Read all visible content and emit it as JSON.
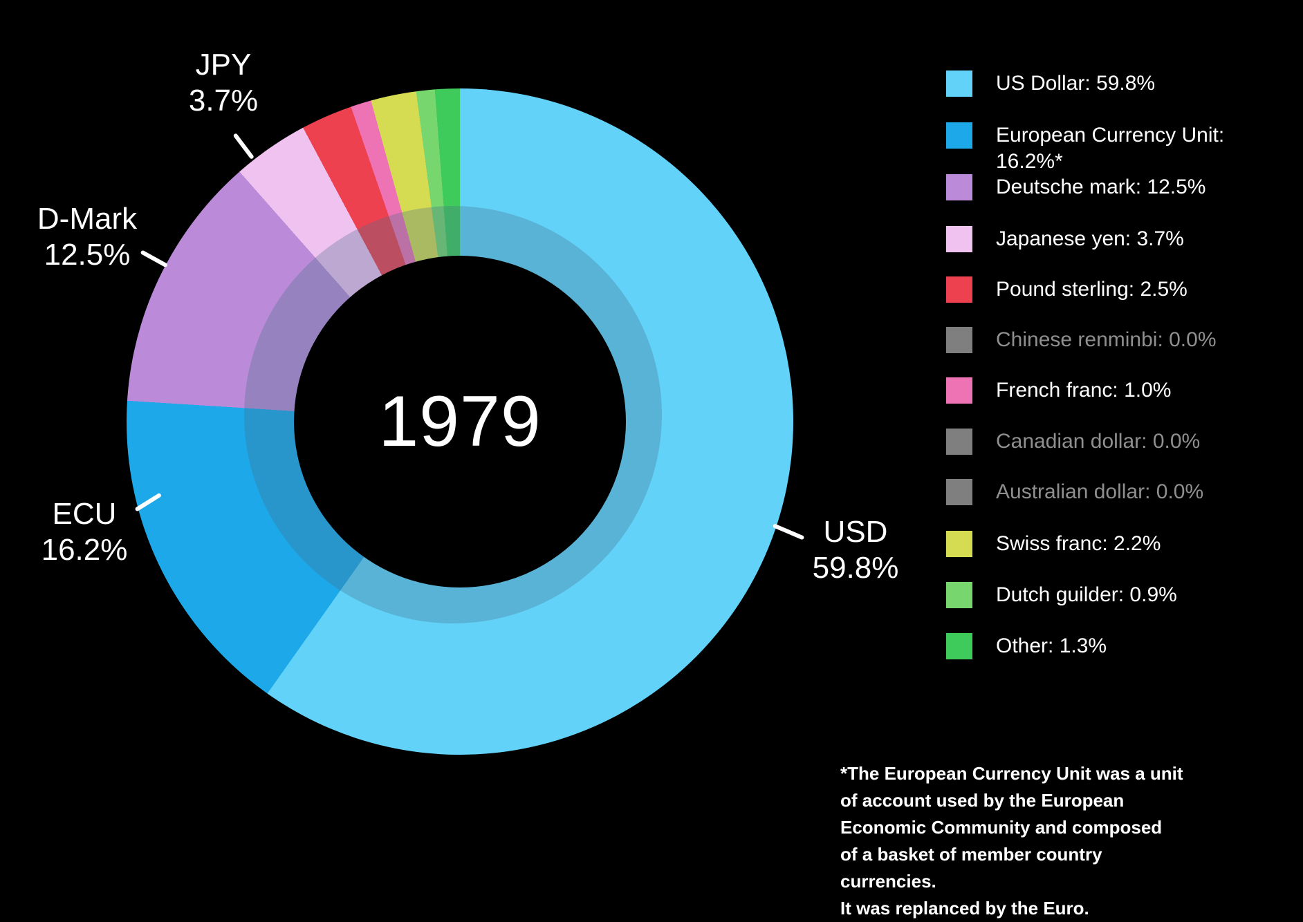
{
  "chart_data": {
    "type": "pie",
    "variant": "donut",
    "title": "",
    "center_label": "1979",
    "background": "#000000",
    "legend_position": "right",
    "start_angle_deg": 0,
    "series": [
      {
        "label": "US Dollar",
        "value": 59.8,
        "color": "#62D2F8",
        "legend_text": "US Dollar: 59.8%"
      },
      {
        "label": "European Currency Unit",
        "value": 16.2,
        "color": "#1CA8E9",
        "legend_text": "European Currency Unit: 16.2%*"
      },
      {
        "label": "Deutsche mark",
        "value": 12.5,
        "color": "#BB8BD9",
        "legend_text": "Deutsche mark: 12.5%"
      },
      {
        "label": "Japanese yen",
        "value": 3.7,
        "color": "#EFC2EF",
        "legend_text": "Japanese yen: 3.7%"
      },
      {
        "label": "Pound sterling",
        "value": 2.5,
        "color": "#EE4150",
        "legend_text": "Pound sterling: 2.5%"
      },
      {
        "label": "Chinese renminbi",
        "value": 0.0,
        "color": "#7F7F7F",
        "legend_text": "Chinese renminbi: 0.0%",
        "muted": true
      },
      {
        "label": "French franc",
        "value": 1.0,
        "color": "#EE73B4",
        "legend_text": "French franc: 1.0%"
      },
      {
        "label": "Canadian dollar",
        "value": 0.0,
        "color": "#7F7F7F",
        "legend_text": "Canadian dollar: 0.0%",
        "muted": true
      },
      {
        "label": "Australian dollar",
        "value": 0.0,
        "color": "#7F7F7F",
        "legend_text": "Australian dollar: 0.0%",
        "muted": true
      },
      {
        "label": "Swiss franc",
        "value": 2.2,
        "color": "#D5DC52",
        "legend_text": "Swiss franc: 2.2%"
      },
      {
        "label": "Dutch guilder",
        "value": 0.9,
        "color": "#77D66E",
        "legend_text": "Dutch guilder: 0.9%"
      },
      {
        "label": "Other",
        "value": 1.3,
        "color": "#3ECB5B",
        "legend_text": "Other: 1.3%"
      }
    ],
    "callouts": [
      {
        "id": "jpy",
        "label": "JPY",
        "value_text": "3.7%"
      },
      {
        "id": "dmark",
        "label": "D-Mark",
        "value_text": "12.5%"
      },
      {
        "id": "ecu",
        "label": "ECU",
        "value_text": "16.2%"
      },
      {
        "id": "usd",
        "label": "USD",
        "value_text": "59.8%"
      }
    ],
    "footnote_lines": [
      "*The European Currency Unit was a unit",
      "of account used by the European",
      "Economic Community and composed",
      "of a basket of member country currencies.",
      "It was replanced by the Euro."
    ],
    "colors": {
      "background": "#000000",
      "text": "#FFFFFF",
      "muted_text": "#8F8F8F",
      "muted_swatch": "#7F7F7F"
    }
  }
}
